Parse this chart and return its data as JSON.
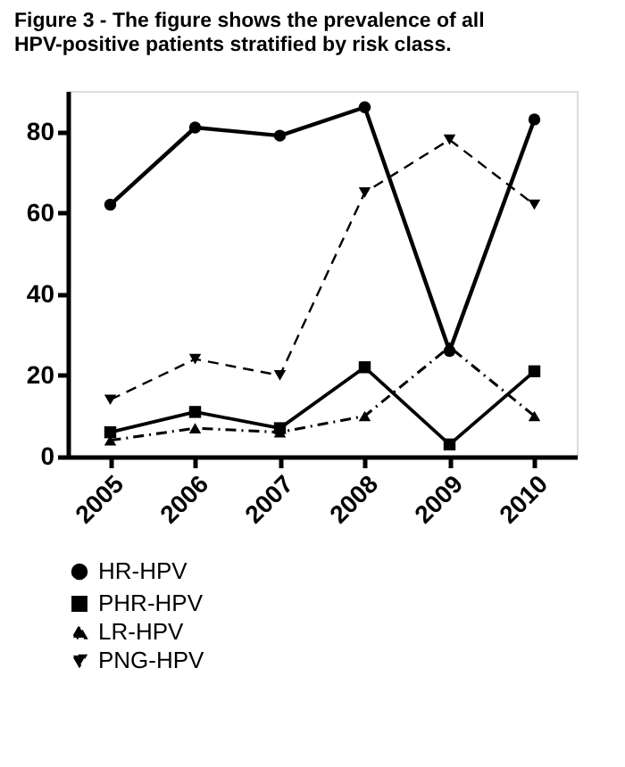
{
  "chart_data": {
    "type": "line",
    "title": "Figure 3 - The figure shows the prevalence of all HPV-positive patients stratified by risk class.",
    "categories": [
      "2005",
      "2006",
      "2007",
      "2008",
      "2009",
      "2010"
    ],
    "series": [
      {
        "name": "HR-HPV",
        "color": "#000000",
        "marker": "circle",
        "line_style": "solid",
        "values": [
          62,
          81,
          79,
          86,
          26,
          83
        ]
      },
      {
        "name": "PHR-HPV",
        "color": "#000000",
        "marker": "square",
        "line_style": "solid",
        "values": [
          6,
          11,
          7,
          22,
          3,
          21
        ]
      },
      {
        "name": "LR-HPV",
        "color": "#000000",
        "marker": "triangle",
        "line_style": "dotted",
        "values": [
          4,
          7,
          6,
          10,
          27,
          10
        ]
      },
      {
        "name": "PNG-HPV",
        "color": "#000000",
        "marker": "triangle-down",
        "line_style": "dashed",
        "values": [
          14,
          24,
          20,
          65,
          78,
          62
        ]
      }
    ],
    "ylim": [
      0,
      90
    ],
    "yticks": [
      0,
      20,
      40,
      60,
      80
    ],
    "grid": false,
    "legend": "bottom left"
  }
}
